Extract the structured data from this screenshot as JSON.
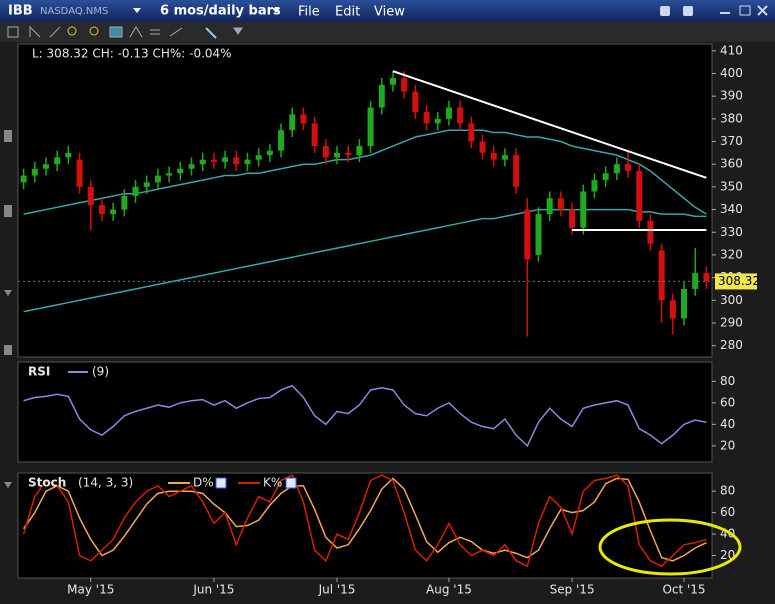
{
  "toolbar": {
    "symbol": "IBB",
    "exchange": "NASDAQ.NMS",
    "period": "6 mos/daily bars",
    "menus": [
      "File",
      "Edit",
      "View"
    ]
  },
  "chart_data": [
    {
      "type": "candlestick",
      "info": "L: 308.32 CH: -0.13 CH%: -0.04%",
      "open": [
        352,
        355,
        358,
        360,
        363,
        362,
        350,
        342,
        338,
        340,
        346,
        350,
        352,
        355,
        356,
        358,
        360,
        362,
        361,
        363,
        360,
        362,
        364,
        366,
        375,
        382,
        378,
        368,
        363,
        365,
        364,
        368,
        385,
        395,
        398,
        392,
        383,
        378,
        380,
        385,
        378,
        370,
        365,
        362,
        364,
        340,
        320,
        338,
        345,
        340,
        332,
        348,
        353,
        356,
        360,
        357,
        335,
        322,
        300,
        292,
        305,
        312
      ],
      "high": [
        358,
        361,
        363,
        366,
        368,
        365,
        353,
        345,
        343,
        349,
        353,
        355,
        358,
        359,
        361,
        363,
        365,
        365,
        366,
        366,
        365,
        367,
        369,
        378,
        385,
        385,
        381,
        371,
        368,
        368,
        371,
        388,
        398,
        401,
        401,
        395,
        386,
        383,
        388,
        388,
        381,
        373,
        368,
        367,
        367,
        345,
        341,
        348,
        348,
        343,
        351,
        356,
        359,
        363,
        366,
        360,
        338,
        325,
        303,
        308,
        323,
        315
      ],
      "low": [
        349,
        352,
        355,
        357,
        360,
        347,
        331,
        335,
        335,
        337,
        343,
        347,
        349,
        352,
        353,
        355,
        357,
        358,
        358,
        357,
        357,
        359,
        361,
        363,
        372,
        375,
        365,
        360,
        360,
        361,
        361,
        365,
        382,
        392,
        389,
        380,
        375,
        375,
        377,
        375,
        367,
        362,
        359,
        359,
        347,
        284,
        317,
        335,
        337,
        329,
        329,
        345,
        350,
        353,
        354,
        332,
        322,
        290,
        285,
        289,
        302,
        305
      ],
      "close": [
        355,
        358,
        360,
        363,
        365,
        350,
        342,
        338,
        340,
        346,
        350,
        352,
        355,
        356,
        358,
        360,
        362,
        361,
        363,
        360,
        362,
        364,
        366,
        375,
        382,
        378,
        368,
        363,
        365,
        364,
        368,
        385,
        395,
        398,
        392,
        383,
        378,
        380,
        385,
        378,
        370,
        365,
        362,
        364,
        350,
        318,
        338,
        345,
        340,
        332,
        348,
        353,
        356,
        360,
        357,
        335,
        325,
        300,
        292,
        305,
        312,
        308.32
      ],
      "close_label": "308.32",
      "up_color": "#1faa1f",
      "down_color": "#d21010",
      "overlays": [
        {
          "color": "#3aa6a8",
          "values": [
            338,
            339,
            340,
            341,
            342,
            343,
            344,
            345,
            346,
            347,
            347,
            348,
            349,
            350,
            351,
            352,
            353,
            354,
            355,
            355,
            356,
            356,
            357,
            358,
            359,
            360,
            360,
            361,
            362,
            362,
            363,
            364,
            366,
            368,
            370,
            372,
            373,
            374,
            375,
            375,
            375,
            375,
            374,
            374,
            373,
            372,
            372,
            371,
            370,
            368,
            367,
            366,
            365,
            364,
            362,
            360,
            357,
            353,
            349,
            345,
            341,
            338
          ]
        },
        {
          "color": "#3aa6a8",
          "values": [
            295,
            296,
            297,
            298,
            299,
            300,
            301,
            302,
            303,
            304,
            305,
            306,
            307,
            308,
            309,
            310,
            311,
            312,
            313,
            314,
            315,
            316,
            317,
            318,
            319,
            320,
            321,
            322,
            323,
            324,
            325,
            326,
            327,
            328,
            329,
            330,
            331,
            332,
            333,
            334,
            335,
            336,
            336,
            337,
            338,
            339,
            340,
            340,
            340,
            340,
            340,
            340,
            340,
            340,
            340,
            339,
            339,
            338,
            338,
            338,
            337,
            337
          ]
        }
      ],
      "trendlines": [
        {
          "x": [
            33,
            61
          ],
          "y": [
            401,
            354
          ],
          "color": "#ffffff"
        },
        {
          "x": [
            49,
            61
          ],
          "y": [
            331,
            331
          ],
          "color": "#ffffff"
        }
      ],
      "ylim": [
        275,
        413
      ],
      "yticks": [
        280,
        290,
        300,
        310,
        320,
        330,
        340,
        350,
        360,
        370,
        380,
        390,
        400,
        410
      ]
    },
    {
      "type": "line",
      "title": "RSI",
      "params": "(9)",
      "series": [
        {
          "color": "#9d80d8",
          "values": [
            62,
            65,
            66,
            68,
            66,
            45,
            35,
            30,
            38,
            48,
            52,
            55,
            58,
            56,
            60,
            62,
            63,
            58,
            62,
            55,
            60,
            64,
            65,
            72,
            76,
            65,
            48,
            40,
            52,
            50,
            58,
            72,
            74,
            72,
            58,
            50,
            48,
            55,
            60,
            50,
            42,
            38,
            36,
            45,
            30,
            20,
            42,
            55,
            45,
            38,
            55,
            58,
            60,
            62,
            58,
            36,
            30,
            22,
            30,
            40,
            44,
            42
          ]
        }
      ],
      "ylim": [
        5,
        98
      ],
      "yticks": [
        20,
        40,
        60,
        80
      ]
    },
    {
      "type": "line",
      "title": "Stoch",
      "params": "(14, 3, 3)",
      "categories": [
        null,
        null,
        null,
        null,
        null,
        null,
        "May '15",
        null,
        null,
        null,
        null,
        null,
        null,
        null,
        null,
        null,
        null,
        "Jun '15",
        null,
        null,
        null,
        null,
        null,
        null,
        null,
        null,
        null,
        null,
        "Jul '15",
        null,
        null,
        null,
        null,
        null,
        null,
        null,
        null,
        null,
        "Aug '15",
        null,
        null,
        null,
        null,
        null,
        null,
        null,
        null,
        null,
        null,
        "Sep '15",
        null,
        null,
        null,
        null,
        null,
        null,
        null,
        null,
        null,
        "Oct '15",
        null,
        null
      ],
      "series": [
        {
          "name": "D%",
          "color": "#f0a858",
          "values": [
            45,
            60,
            80,
            85,
            80,
            55,
            35,
            20,
            25,
            38,
            53,
            68,
            78,
            80,
            80,
            80,
            78,
            68,
            60,
            47,
            48,
            53,
            67,
            78,
            85,
            85,
            63,
            37,
            27,
            30,
            45,
            62,
            82,
            92,
            82,
            58,
            33,
            23,
            32,
            37,
            33,
            25,
            22,
            25,
            22,
            18,
            25,
            45,
            63,
            60,
            62,
            70,
            87,
            92,
            91,
            70,
            43,
            18,
            15,
            20,
            27,
            32
          ]
        },
        {
          "name": "K%",
          "color": "#d42200",
          "values": [
            40,
            75,
            90,
            85,
            70,
            20,
            15,
            25,
            35,
            55,
            70,
            80,
            85,
            75,
            80,
            85,
            70,
            50,
            60,
            30,
            55,
            75,
            70,
            90,
            95,
            70,
            25,
            15,
            40,
            35,
            60,
            90,
            95,
            90,
            60,
            25,
            15,
            30,
            50,
            30,
            20,
            25,
            20,
            30,
            15,
            10,
            50,
            75,
            65,
            40,
            80,
            90,
            92,
            95,
            85,
            30,
            15,
            10,
            20,
            30,
            32,
            35
          ]
        }
      ],
      "ylim": [
        -1,
        97
      ],
      "yticks": [
        20,
        40,
        60,
        80
      ]
    }
  ]
}
